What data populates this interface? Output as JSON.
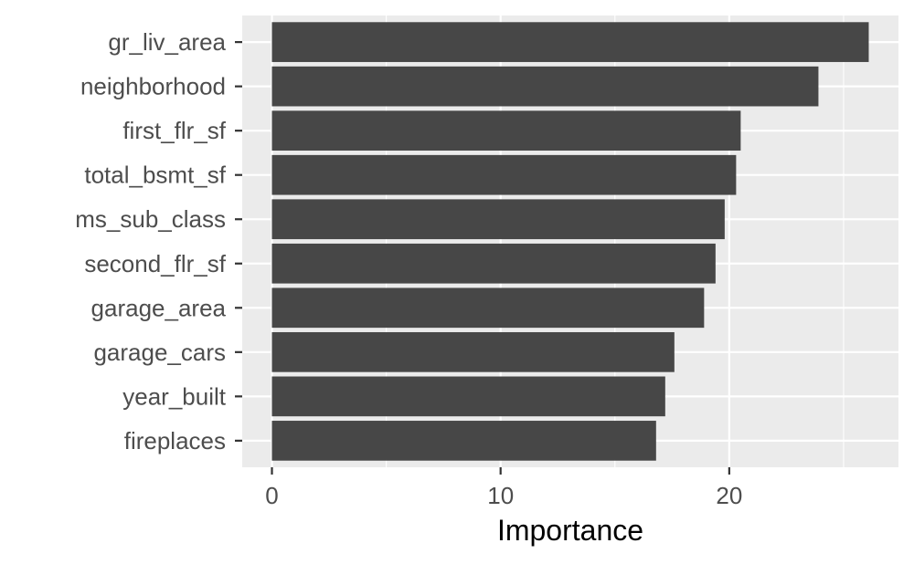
{
  "chart_data": {
    "type": "bar",
    "orientation": "horizontal",
    "title": "",
    "xlabel": "Importance",
    "ylabel": "",
    "categories": [
      "gr_liv_area",
      "neighborhood",
      "first_flr_sf",
      "total_bsmt_sf",
      "ms_sub_class",
      "second_flr_sf",
      "garage_area",
      "garage_cars",
      "year_built",
      "fireplaces"
    ],
    "values": [
      26.1,
      23.9,
      20.5,
      20.3,
      19.8,
      19.4,
      18.9,
      17.6,
      17.2,
      16.8
    ],
    "xlim": [
      -1.3,
      27.4
    ],
    "xticks": [
      0,
      10,
      20
    ],
    "xtick_labels": [
      "0",
      "10",
      "20"
    ],
    "grid": true,
    "legend": "none",
    "colors": {
      "bar": "#474747",
      "panel": "#ebebeb",
      "grid": "#ffffff"
    }
  }
}
